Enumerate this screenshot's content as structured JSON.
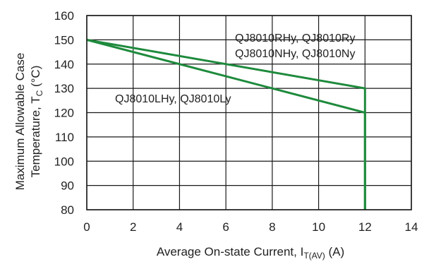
{
  "chart_data": {
    "type": "line",
    "xlabel_main": "Average On-state Current, I",
    "xlabel_sub": "T(AV)",
    "xlabel_unit": " (A)",
    "ylabel_line1": "Maximum Allowable Case",
    "ylabel_line2_main": "Temperature, T",
    "ylabel_line2_sub": "C",
    "ylabel_line2_unit": " (°C)",
    "xlim": [
      0,
      14
    ],
    "ylim": [
      80,
      160
    ],
    "xticks": [
      0,
      2,
      4,
      6,
      8,
      10,
      12,
      14
    ],
    "yticks": [
      80,
      90,
      100,
      110,
      120,
      130,
      140,
      150,
      160
    ],
    "grid": true,
    "line_color": "#1e8a3c",
    "series": [
      {
        "labels": [
          "QJ8010RHy, QJ8010Ry",
          "QJ8010NHy, QJ8010Ny"
        ],
        "x": [
          0,
          12,
          12
        ],
        "y": [
          150,
          130,
          80
        ]
      },
      {
        "labels": [
          "QJ8010LHy, QJ8010Ly"
        ],
        "x": [
          0,
          12,
          12
        ],
        "y": [
          150,
          120,
          80
        ]
      }
    ]
  }
}
